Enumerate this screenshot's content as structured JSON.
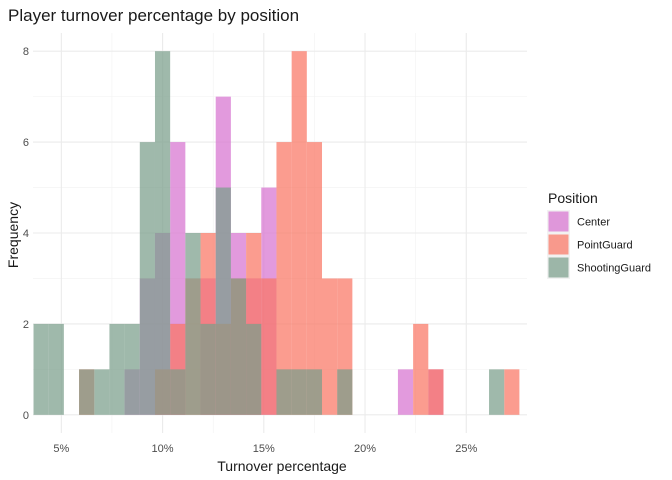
{
  "chart_data": {
    "type": "histogram",
    "title": "Player turnover percentage by position",
    "xlabel": "Turnover percentage",
    "ylabel": "Frequency",
    "xlim": [
      0.036,
      0.28
    ],
    "ylim": [
      -0.4,
      8.4
    ],
    "x_ticks": [
      {
        "value": 0.05,
        "label": "5%"
      },
      {
        "value": 0.1,
        "label": "10%"
      },
      {
        "value": 0.15,
        "label": "15%"
      },
      {
        "value": 0.2,
        "label": "20%"
      },
      {
        "value": 0.25,
        "label": "25%"
      }
    ],
    "y_ticks": [
      0,
      2,
      4,
      6,
      8
    ],
    "grid": true,
    "bin_width": 0.0075,
    "legend": {
      "title": "Position",
      "placement": "right"
    },
    "series": [
      {
        "name": "Center",
        "color": "#D773D0",
        "bins": [
          {
            "x": 0.085,
            "count": 1
          },
          {
            "x": 0.0925,
            "count": 3
          },
          {
            "x": 0.1,
            "count": 4
          },
          {
            "x": 0.1075,
            "count": 6
          },
          {
            "x": 0.1225,
            "count": 3
          },
          {
            "x": 0.13,
            "count": 7
          },
          {
            "x": 0.1375,
            "count": 4
          },
          {
            "x": 0.145,
            "count": 3
          },
          {
            "x": 0.1525,
            "count": 5
          },
          {
            "x": 0.22,
            "count": 1
          },
          {
            "x": 0.235,
            "count": 1
          }
        ]
      },
      {
        "name": "PointGuard",
        "color": "#FA7664",
        "bins": [
          {
            "x": 0.0625,
            "count": 1
          },
          {
            "x": 0.1,
            "count": 1
          },
          {
            "x": 0.1075,
            "count": 2
          },
          {
            "x": 0.115,
            "count": 3
          },
          {
            "x": 0.1225,
            "count": 4
          },
          {
            "x": 0.13,
            "count": 2
          },
          {
            "x": 0.1375,
            "count": 3
          },
          {
            "x": 0.145,
            "count": 4
          },
          {
            "x": 0.1525,
            "count": 3
          },
          {
            "x": 0.16,
            "count": 6
          },
          {
            "x": 0.1675,
            "count": 8
          },
          {
            "x": 0.175,
            "count": 6
          },
          {
            "x": 0.1825,
            "count": 3
          },
          {
            "x": 0.19,
            "count": 3
          },
          {
            "x": 0.2275,
            "count": 2
          },
          {
            "x": 0.235,
            "count": 1
          },
          {
            "x": 0.2725,
            "count": 1
          }
        ]
      },
      {
        "name": "ShootingGuard",
        "color": "#7A9E8B",
        "bins": [
          {
            "x": 0.04,
            "count": 2
          },
          {
            "x": 0.0475,
            "count": 2
          },
          {
            "x": 0.0625,
            "count": 1
          },
          {
            "x": 0.07,
            "count": 1
          },
          {
            "x": 0.0775,
            "count": 2
          },
          {
            "x": 0.085,
            "count": 2
          },
          {
            "x": 0.0925,
            "count": 6
          },
          {
            "x": 0.1,
            "count": 8
          },
          {
            "x": 0.1075,
            "count": 1
          },
          {
            "x": 0.115,
            "count": 4
          },
          {
            "x": 0.1225,
            "count": 2
          },
          {
            "x": 0.13,
            "count": 5
          },
          {
            "x": 0.1375,
            "count": 3
          },
          {
            "x": 0.145,
            "count": 2
          },
          {
            "x": 0.16,
            "count": 1
          },
          {
            "x": 0.1675,
            "count": 1
          },
          {
            "x": 0.175,
            "count": 1
          },
          {
            "x": 0.19,
            "count": 1
          },
          {
            "x": 0.265,
            "count": 1
          }
        ]
      }
    ]
  }
}
